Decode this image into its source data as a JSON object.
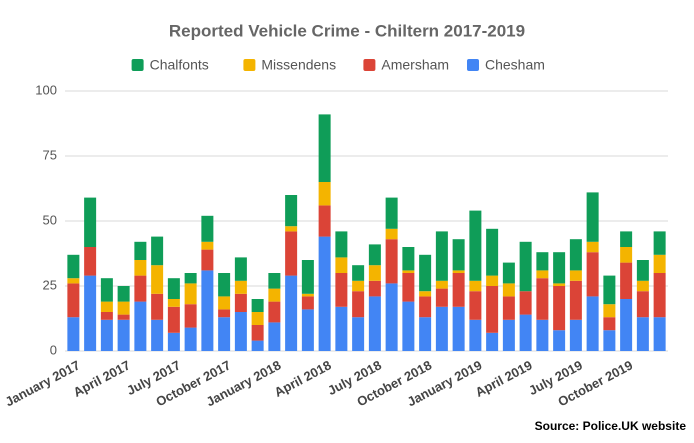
{
  "chart_data": {
    "type": "bar",
    "stacked": true,
    "title": "Reported Vehicle Crime - Chiltern 2017-2019",
    "source": "Source: Police.UK website",
    "categories": [
      "January 2017",
      null,
      null,
      "April 2017",
      null,
      null,
      "July 2017",
      null,
      null,
      "October 2017",
      null,
      null,
      "January 2018",
      null,
      null,
      "April 2018",
      null,
      null,
      "July 2018",
      null,
      null,
      "October 2018",
      null,
      null,
      "January 2019",
      null,
      null,
      "April 2019",
      null,
      null,
      "July 2019",
      null,
      null,
      "October 2019",
      null,
      null
    ],
    "series": [
      {
        "name": "Chesham",
        "color": "#4285f4",
        "values": [
          13,
          29,
          12,
          12,
          19,
          12,
          7,
          9,
          31,
          13,
          15,
          4,
          11,
          29,
          16,
          44,
          17,
          13,
          21,
          26,
          19,
          13,
          17,
          17,
          12,
          7,
          12,
          14,
          12,
          8,
          12,
          21,
          8,
          20,
          13,
          13
        ]
      },
      {
        "name": "Amersham",
        "color": "#db4437",
        "values": [
          13,
          11,
          3,
          2,
          10,
          10,
          10,
          9,
          8,
          3,
          7,
          6,
          8,
          17,
          5,
          12,
          13,
          10,
          6,
          17,
          11,
          8,
          7,
          13,
          11,
          18,
          9,
          9,
          16,
          17,
          15,
          17,
          5,
          14,
          10,
          17
        ]
      },
      {
        "name": "Missendens",
        "color": "#f4b400",
        "values": [
          2,
          0,
          4,
          5,
          6,
          11,
          3,
          8,
          3,
          5,
          5,
          5,
          5,
          2,
          1,
          9,
          6,
          4,
          6,
          4,
          1,
          2,
          3,
          1,
          4,
          4,
          5,
          0,
          3,
          1,
          4,
          4,
          5,
          6,
          4,
          7
        ]
      },
      {
        "name": "Chalfonts",
        "color": "#0f9d58",
        "values": [
          9,
          19,
          9,
          6,
          7,
          11,
          8,
          4,
          10,
          9,
          9,
          5,
          6,
          12,
          13,
          26,
          10,
          6,
          8,
          12,
          9,
          14,
          19,
          12,
          27,
          18,
          8,
          19,
          7,
          12,
          12,
          19,
          11,
          6,
          8,
          9
        ]
      }
    ],
    "ylim": [
      0,
      100
    ],
    "yticks": [
      0,
      25,
      50,
      75,
      100
    ],
    "grid": true,
    "legend": "top"
  }
}
